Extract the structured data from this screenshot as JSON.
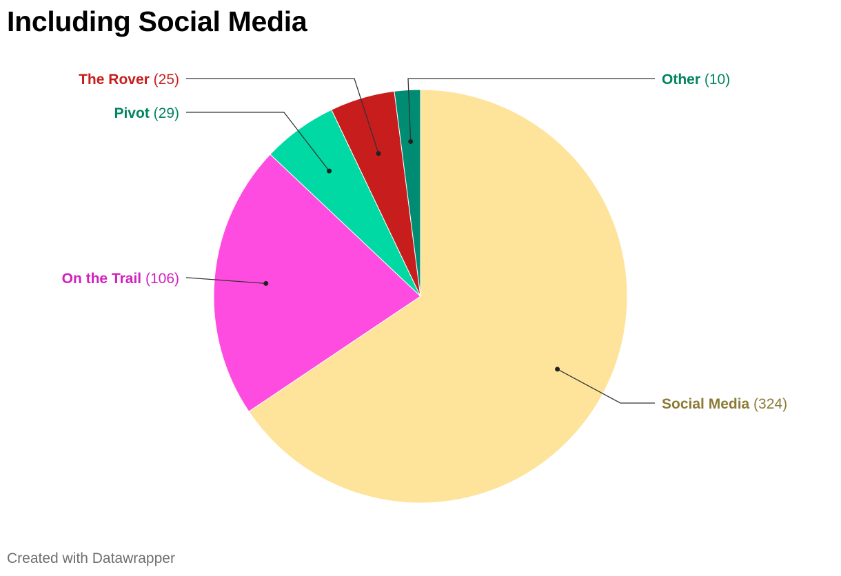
{
  "chart_data": {
    "type": "pie",
    "title": "Including Social Media",
    "slices": [
      {
        "label": "Social Media",
        "value": 324,
        "color": "#fee39b",
        "label_color": "#8a7a35",
        "value_text": "(324)"
      },
      {
        "label": "On the Trail",
        "value": 106,
        "color": "#ff4ce0",
        "label_color": "#d41fc0",
        "value_text": "(106)"
      },
      {
        "label": "Pivot",
        "value": 29,
        "color": "#00d9a3",
        "label_color": "#00845f",
        "value_text": "(29)"
      },
      {
        "label": "The Rover",
        "value": 25,
        "color": "#c71d1d",
        "label_color": "#c71d1d",
        "value_text": "(25)"
      },
      {
        "label": "Other",
        "value": 10,
        "color": "#008c73",
        "label_color": "#00845f",
        "value_text": "(10)"
      }
    ],
    "start": "12 o'clock",
    "direction": "clockwise"
  },
  "footer": {
    "credit": "Created with Datawrapper"
  }
}
